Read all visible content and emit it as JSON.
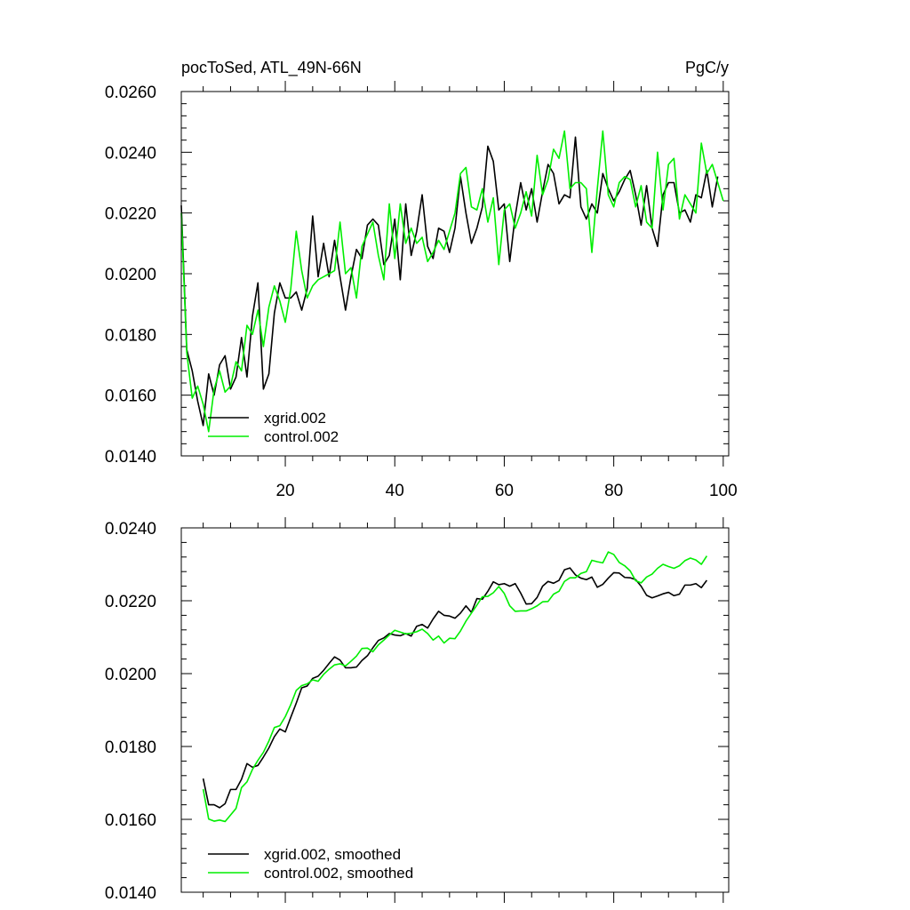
{
  "figure": {
    "title_left": "pocToSed, ATL_49N-66N",
    "title_right": "PgC/y",
    "colors": {
      "xgrid": "#000000",
      "control": "#00ee00",
      "axes": "#000000",
      "background": "#ffffff"
    }
  },
  "chart_data": [
    {
      "type": "line",
      "title": "pocToSed, ATL_49N-66N",
      "units": "PgC/y",
      "xlim": [
        1,
        101
      ],
      "ylim": [
        0.014,
        0.026
      ],
      "xticks": [
        20,
        40,
        60,
        80,
        100
      ],
      "xtick_labels": [
        "20",
        "40",
        "60",
        "80",
        "100"
      ],
      "yticks": [
        0.014,
        0.016,
        0.018,
        0.02,
        0.022,
        0.024,
        0.026
      ],
      "ytick_labels": [
        "0.0140",
        "0.0160",
        "0.0180",
        "0.0200",
        "0.0220",
        "0.0240",
        "0.0260"
      ],
      "grid": false,
      "legend_position": "bottom-left",
      "series": [
        {
          "name": "xgrid.002",
          "color": "#000000",
          "x_start": 1,
          "values": [
            0.02225,
            0.0175,
            0.0168,
            0.0158,
            0.015,
            0.0167,
            0.016,
            0.017,
            0.0173,
            0.0162,
            0.0166,
            0.0179,
            0.0166,
            0.0186,
            0.0197,
            0.0162,
            0.0167,
            0.0187,
            0.0197,
            0.0192,
            0.0192,
            0.0194,
            0.0188,
            0.0195,
            0.0219,
            0.0199,
            0.021,
            0.0199,
            0.0211,
            0.0199,
            0.0188,
            0.0199,
            0.0208,
            0.0205,
            0.0216,
            0.0218,
            0.0216,
            0.0203,
            0.0206,
            0.0218,
            0.0198,
            0.0223,
            0.0206,
            0.0214,
            0.0226,
            0.0209,
            0.0205,
            0.0215,
            0.0214,
            0.0207,
            0.0215,
            0.0232,
            0.022,
            0.021,
            0.0215,
            0.0222,
            0.0242,
            0.0237,
            0.0221,
            0.0223,
            0.0204,
            0.0219,
            0.023,
            0.0221,
            0.0228,
            0.0217,
            0.0227,
            0.0236,
            0.0233,
            0.0223,
            0.0226,
            0.0225,
            0.0245,
            0.0222,
            0.0218,
            0.0223,
            0.022,
            0.0233,
            0.0228,
            0.0224,
            0.0227,
            0.0231,
            0.0234,
            0.0226,
            0.0216,
            0.0229,
            0.0215,
            0.0209,
            0.0226,
            0.023,
            0.023,
            0.022,
            0.0221,
            0.0217,
            0.0226,
            0.0225,
            0.0234,
            0.0222,
            0.0232
          ]
        },
        {
          "name": "control.002",
          "color": "#00ee00",
          "x_start": 1,
          "values": [
            0.022,
            0.0174,
            0.0159,
            0.0163,
            0.0157,
            0.0148,
            0.0162,
            0.0168,
            0.0161,
            0.0163,
            0.0171,
            0.0168,
            0.0183,
            0.018,
            0.0188,
            0.0176,
            0.0189,
            0.0196,
            0.0191,
            0.0184,
            0.0195,
            0.0214,
            0.0201,
            0.0192,
            0.0196,
            0.0198,
            0.0199,
            0.02,
            0.0201,
            0.0217,
            0.02,
            0.0202,
            0.0192,
            0.0209,
            0.0213,
            0.0217,
            0.0206,
            0.0198,
            0.0223,
            0.0205,
            0.0223,
            0.021,
            0.0215,
            0.021,
            0.0212,
            0.0204,
            0.0207,
            0.0211,
            0.0208,
            0.0214,
            0.022,
            0.0233,
            0.0235,
            0.0222,
            0.0221,
            0.0228,
            0.0217,
            0.0225,
            0.0203,
            0.0221,
            0.0223,
            0.0215,
            0.022,
            0.0227,
            0.0219,
            0.0239,
            0.0226,
            0.0231,
            0.0241,
            0.0238,
            0.0247,
            0.0228,
            0.023,
            0.023,
            0.0228,
            0.0207,
            0.0228,
            0.0247,
            0.0226,
            0.0222,
            0.023,
            0.0232,
            0.0231,
            0.0222,
            0.0229,
            0.0217,
            0.0215,
            0.024,
            0.0221,
            0.0236,
            0.0238,
            0.0218,
            0.0226,
            0.0223,
            0.022,
            0.0243,
            0.0233,
            0.0236,
            0.023,
            0.0224
          ]
        }
      ]
    },
    {
      "type": "line",
      "xlim": [
        1,
        101
      ],
      "ylim": [
        0.014,
        0.024
      ],
      "xticks": [
        20,
        40,
        60,
        80,
        100
      ],
      "yticks": [
        0.014,
        0.016,
        0.018,
        0.02,
        0.022,
        0.024
      ],
      "ytick_labels": [
        "0.0140",
        "0.0160",
        "0.0180",
        "0.0200",
        "0.0220",
        "0.0240"
      ],
      "grid": false,
      "legend_position": "bottom-left",
      "series": [
        {
          "name": "xgrid.002, smoothed",
          "color": "#000000",
          "x_start": 5,
          "values": [
            0.01712,
            0.0164,
            0.0164,
            0.01632,
            0.01643,
            0.01682,
            0.01682,
            0.0171,
            0.01753,
            0.01743,
            0.01748,
            0.01771,
            0.01796,
            0.01827,
            0.01848,
            0.0184,
            0.0188,
            0.01919,
            0.01961,
            0.01966,
            0.01987,
            0.01993,
            0.02009,
            0.02028,
            0.02046,
            0.02037,
            0.02016,
            0.02016,
            0.02018,
            0.02036,
            0.02049,
            0.02071,
            0.02091,
            0.02098,
            0.0211,
            0.02106,
            0.02104,
            0.0211,
            0.02103,
            0.0213,
            0.02135,
            0.02125,
            0.0215,
            0.02171,
            0.0216,
            0.02158,
            0.02152,
            0.02166,
            0.02186,
            0.02168,
            0.02206,
            0.02204,
            0.02226,
            0.02252,
            0.02244,
            0.02247,
            0.0224,
            0.02247,
            0.02221,
            0.02191,
            0.02192,
            0.02209,
            0.0224,
            0.02253,
            0.02248,
            0.02256,
            0.02285,
            0.0229,
            0.02271,
            0.02262,
            0.02258,
            0.02265,
            0.02237,
            0.02245,
            0.02262,
            0.02277,
            0.02276,
            0.02264,
            0.02263,
            0.02258,
            0.0224,
            0.02215,
            0.02208,
            0.02213,
            0.02219,
            0.02223,
            0.02214,
            0.02218,
            0.02243,
            0.02243,
            0.02247,
            0.02236,
            0.02256
          ]
        },
        {
          "name": "control.002, smoothed",
          "color": "#00ee00",
          "x_start": 5,
          "values": [
            0.01683,
            0.01601,
            0.01595,
            0.01598,
            0.01594,
            0.01612,
            0.0163,
            0.01687,
            0.01703,
            0.01737,
            0.01762,
            0.01784,
            0.01815,
            0.01852,
            0.01857,
            0.01882,
            0.01915,
            0.01954,
            0.01967,
            0.01972,
            0.01983,
            0.01979,
            0.01998,
            0.02012,
            0.02024,
            0.02027,
            0.02021,
            0.02034,
            0.02048,
            0.02069,
            0.0207,
            0.0206,
            0.02079,
            0.02092,
            0.02106,
            0.02119,
            0.02114,
            0.02109,
            0.02111,
            0.02115,
            0.02122,
            0.0211,
            0.02092,
            0.02103,
            0.02084,
            0.02097,
            0.02096,
            0.02117,
            0.02144,
            0.02166,
            0.02188,
            0.02211,
            0.02212,
            0.02222,
            0.02239,
            0.0222,
            0.02186,
            0.02171,
            0.02172,
            0.02172,
            0.02178,
            0.02186,
            0.02197,
            0.02198,
            0.02218,
            0.02226,
            0.02253,
            0.02263,
            0.02263,
            0.02275,
            0.0228,
            0.02311,
            0.02307,
            0.02304,
            0.02334,
            0.02327,
            0.02305,
            0.02296,
            0.02282,
            0.02255,
            0.02249,
            0.02265,
            0.02273,
            0.02289,
            0.023,
            0.02294,
            0.02289,
            0.02296,
            0.0231,
            0.02317,
            0.02312,
            0.023,
            0.02323
          ]
        }
      ]
    }
  ]
}
